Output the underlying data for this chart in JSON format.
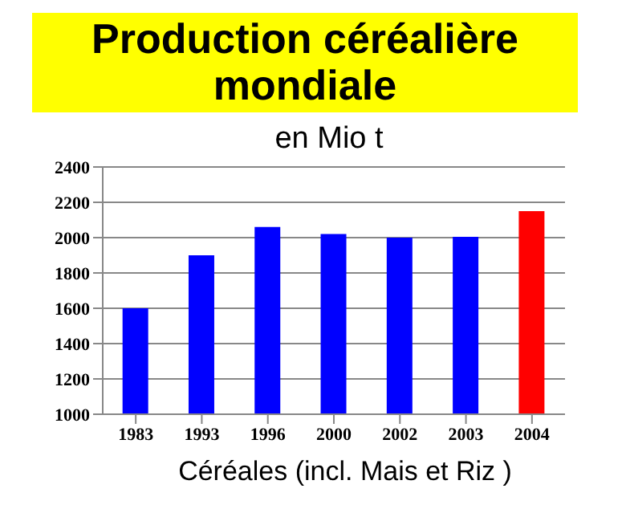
{
  "chart_data": {
    "type": "bar",
    "title": "Production céréalière mondiale",
    "subtitle": "en Mio t",
    "xlabel": "Céréales  (incl. Mais et Riz )",
    "categories": [
      "1983",
      "1993",
      "1996",
      "2000",
      "2002",
      "2003",
      "2004"
    ],
    "values": [
      1600,
      1900,
      2060,
      2020,
      2000,
      2005,
      2150
    ],
    "colors": [
      "#0000ff",
      "#0000ff",
      "#0000ff",
      "#0000ff",
      "#0000ff",
      "#0000ff",
      "#ff0000"
    ],
    "ylim": [
      1000,
      2400
    ],
    "yticks": [
      1000,
      1200,
      1400,
      1600,
      1800,
      2000,
      2200,
      2400
    ],
    "grid": "y",
    "legend": false
  }
}
